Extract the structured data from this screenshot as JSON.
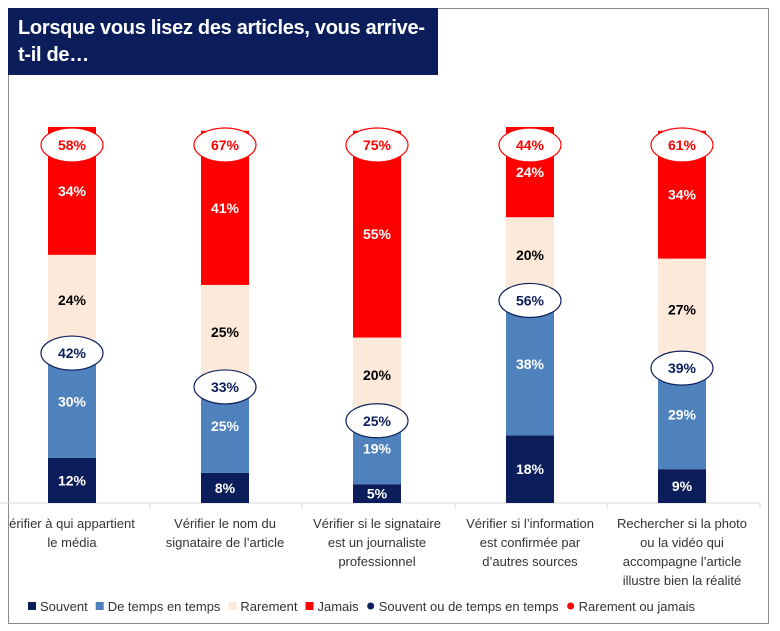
{
  "chart_data": {
    "type": "bar",
    "stacked": true,
    "title": "Lorsque vous lisez des articles, vous arrive-t-il de…",
    "categories": [
      [
        "érifier à qui appartient",
        "le média"
      ],
      [
        "Vérifier le nom du",
        "signataire de l’article"
      ],
      [
        "Vérifier si le signataire",
        "est un journaliste",
        "professionnel"
      ],
      [
        "Vérifier si l’information",
        "est confirmée par",
        "d’autres sources"
      ],
      [
        "Rechercher si la photo",
        "ou la vidéo qui",
        "accompagne l’article",
        "illustre bien la réalité"
      ]
    ],
    "series": [
      {
        "name": "Souvent",
        "color": "#0b1e5b",
        "label_color": "#ffffff",
        "values": [
          12,
          8,
          5,
          18,
          9
        ]
      },
      {
        "name": "De temps en temps",
        "color": "#4f81bd",
        "label_color": "#ffffff",
        "values": [
          30,
          25,
          19,
          38,
          29
        ]
      },
      {
        "name": "Rarement",
        "color": "#fde9d9",
        "label_color": "#000000",
        "values": [
          24,
          25,
          20,
          20,
          27
        ]
      },
      {
        "name": "Jamais",
        "color": "#ff0000",
        "label_color": "#ffffff",
        "values": [
          34,
          41,
          55,
          24,
          34
        ]
      }
    ],
    "totals": [
      {
        "name": "Souvent ou de temps en temps",
        "color": "#0b1e5b",
        "values": [
          42,
          33,
          25,
          56,
          39
        ]
      },
      {
        "name": "Rarement ou jamais",
        "color": "#ff0000",
        "values": [
          58,
          67,
          75,
          44,
          61
        ]
      }
    ],
    "ylim": [
      0,
      100
    ],
    "grid": false,
    "legend": "bottom"
  }
}
